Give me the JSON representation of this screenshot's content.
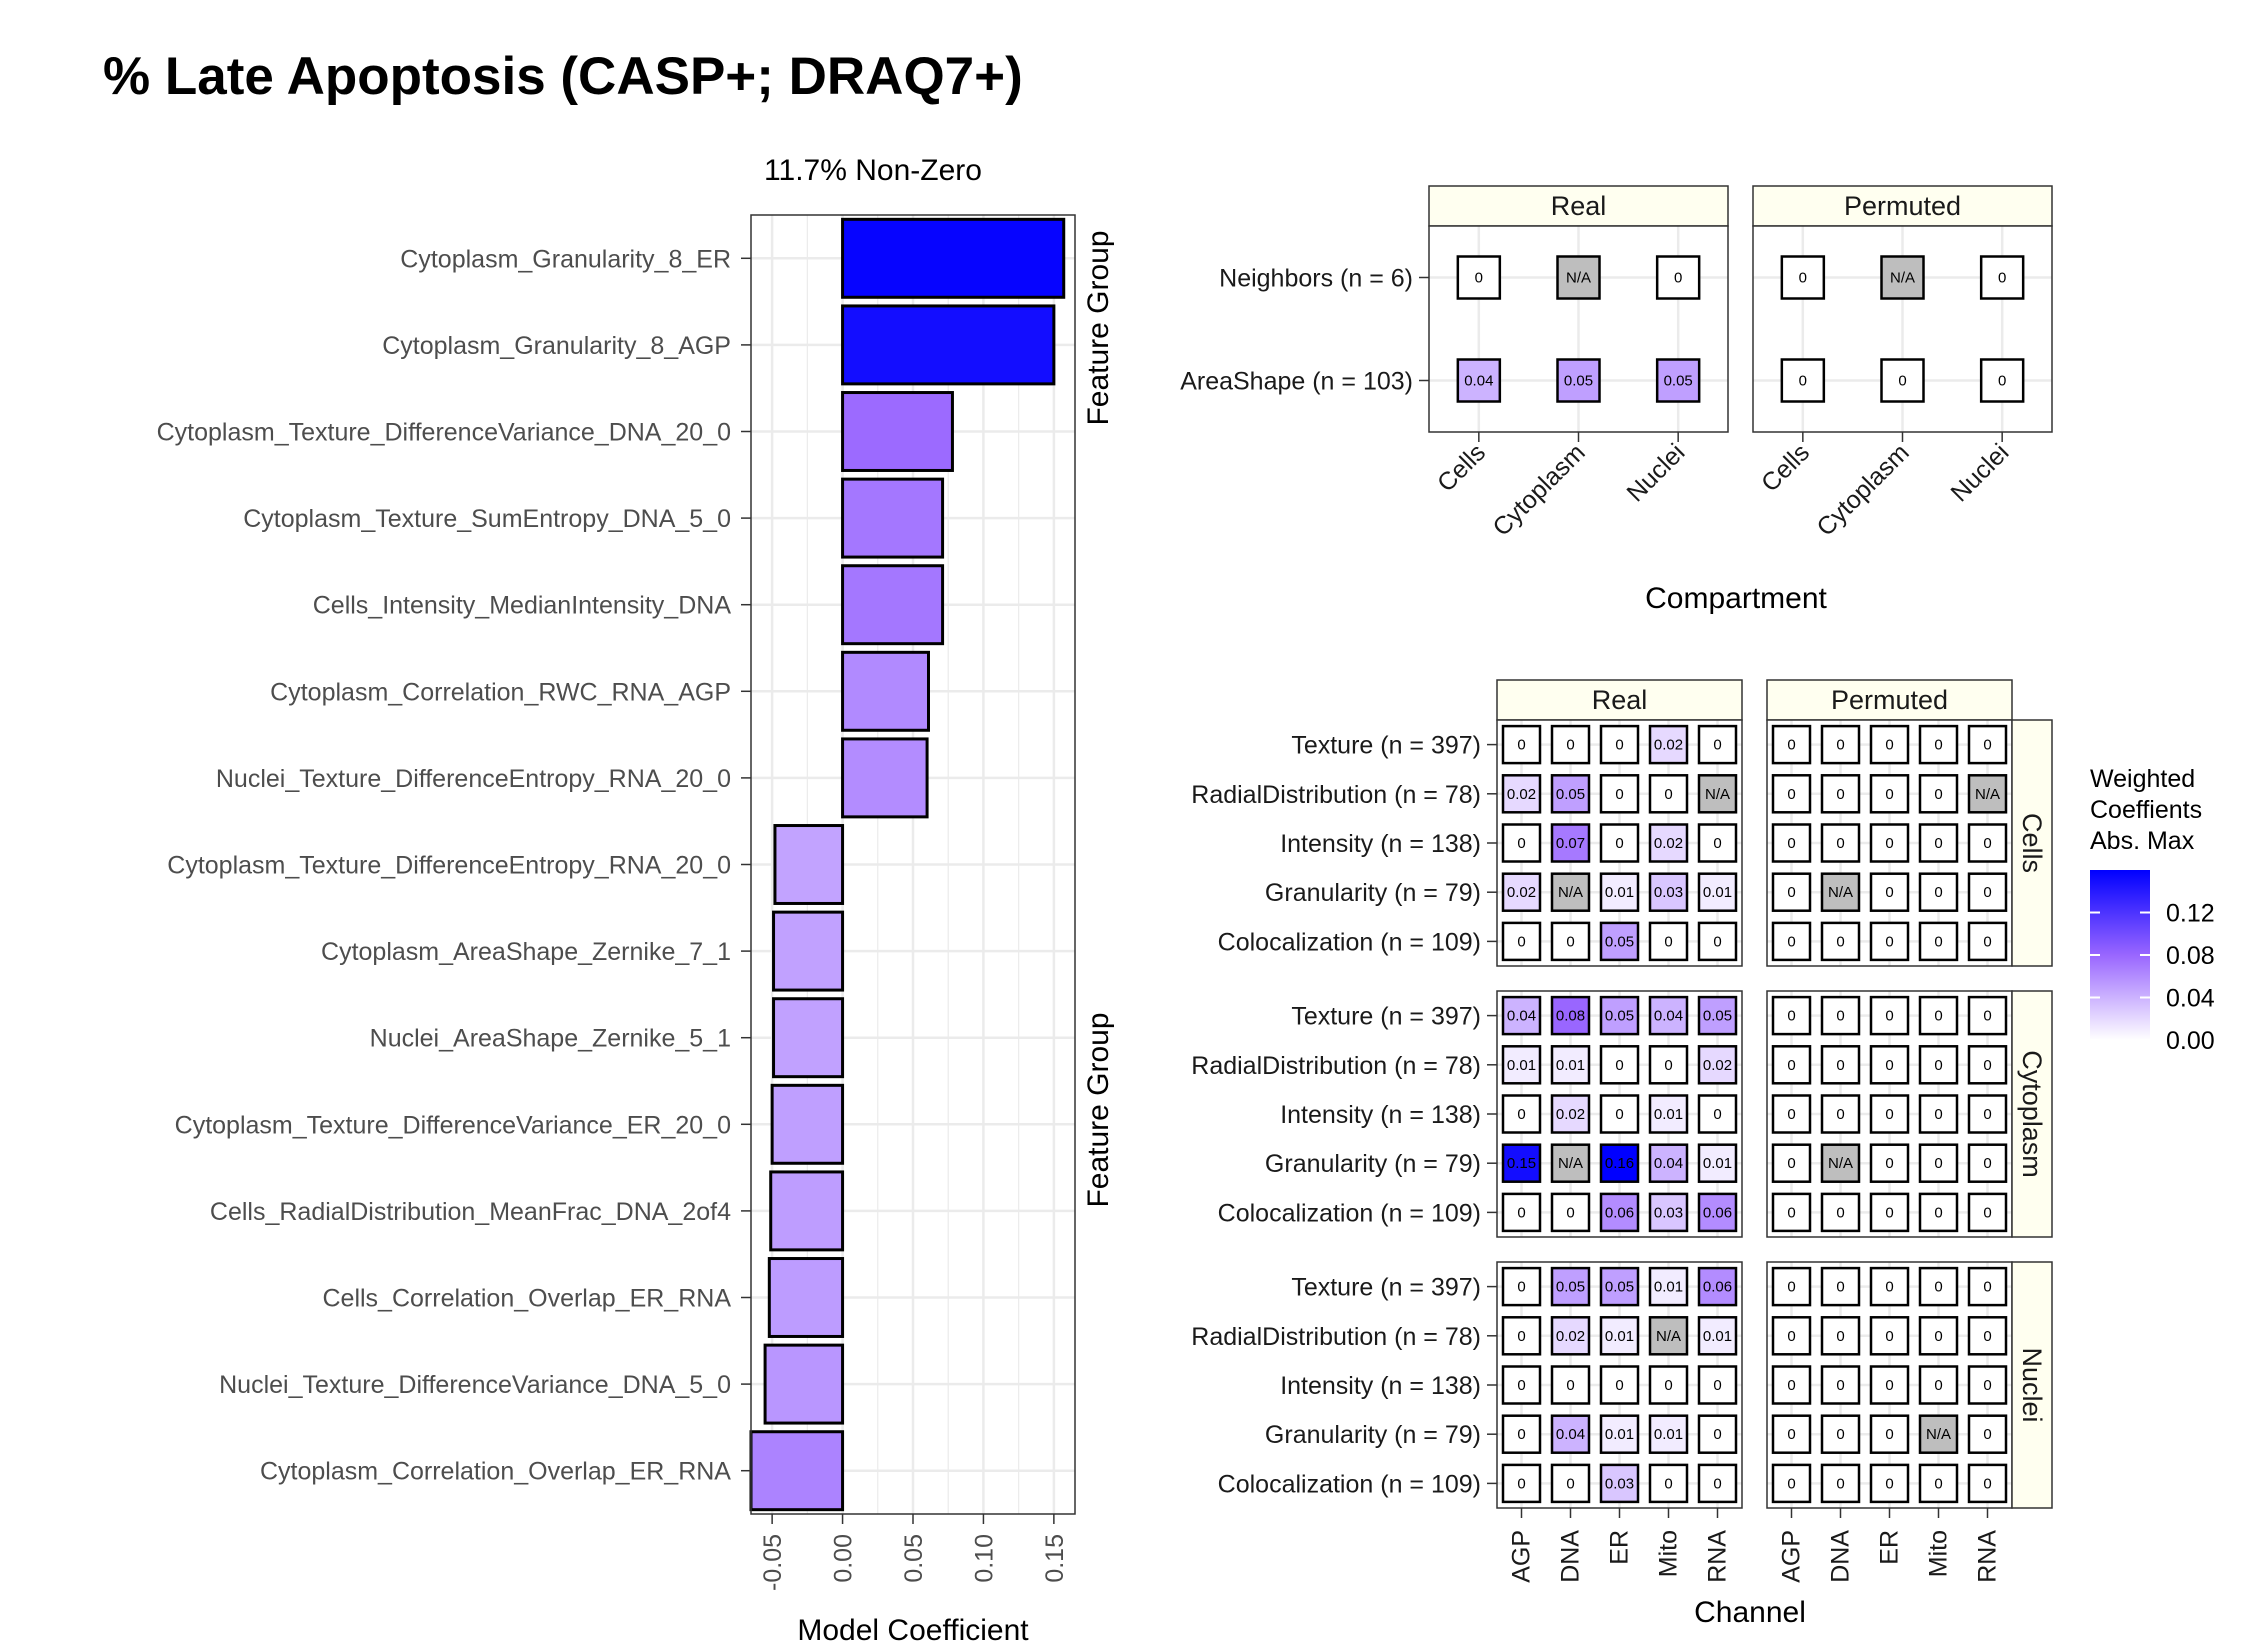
{
  "title": "% Late Apoptosis (CASP+; DRAQ7+)",
  "chart_data": [
    {
      "type": "bar",
      "orientation": "horizontal",
      "subtitle": "11.7% Non-Zero",
      "xlabel": "Model Coefficient",
      "ylabel": "",
      "xlim": [
        -0.065,
        0.165
      ],
      "x_ticks": [
        "-0.05",
        "0.00",
        "0.05",
        "0.10",
        "0.15"
      ],
      "grid": true,
      "categories": [
        "Cytoplasm_Granularity_8_ER",
        "Cytoplasm_Granularity_8_AGP",
        "Cytoplasm_Texture_DifferenceVariance_DNA_20_0",
        "Cytoplasm_Texture_SumEntropy_DNA_5_0",
        "Cells_Intensity_MedianIntensity_DNA",
        "Cytoplasm_Correlation_RWC_RNA_AGP",
        "Nuclei_Texture_DifferenceEntropy_RNA_20_0",
        "Cytoplasm_Texture_DifferenceEntropy_RNA_20_0",
        "Cytoplasm_AreaShape_Zernike_7_1",
        "Nuclei_AreaShape_Zernike_5_1",
        "Cytoplasm_Texture_DifferenceVariance_ER_20_0",
        "Cells_RadialDistribution_MeanFrac_DNA_2of4",
        "Cells_Correlation_Overlap_ER_RNA",
        "Nuclei_Texture_DifferenceVariance_DNA_5_0",
        "Cytoplasm_Correlation_Overlap_ER_RNA"
      ],
      "values": [
        0.157,
        0.15,
        0.078,
        0.071,
        0.071,
        0.061,
        0.06,
        -0.048,
        -0.049,
        -0.049,
        -0.05,
        -0.051,
        -0.052,
        -0.055,
        -0.065
      ]
    },
    {
      "type": "heatmap",
      "ylabel": "Feature Group",
      "xlabel": "Compartment",
      "panels": [
        "Real",
        "Permuted"
      ],
      "columns": [
        "Cells",
        "Cytoplasm",
        "Nuclei"
      ],
      "rows": [
        "Neighbors (n = 6)",
        "AreaShape (n = 103)"
      ],
      "values": {
        "Real": [
          [
            0,
            null,
            0
          ],
          [
            0.04,
            0.05,
            0.05
          ]
        ],
        "Permuted": [
          [
            0,
            null,
            0
          ],
          [
            0,
            0,
            0
          ]
        ]
      },
      "labels": {
        "Real": [
          [
            "0",
            "N/A",
            "0"
          ],
          [
            "0.04",
            "0.05",
            "0.05"
          ]
        ],
        "Permuted": [
          [
            "0",
            "N/A",
            "0"
          ],
          [
            "0",
            "0",
            "0"
          ]
        ]
      }
    },
    {
      "type": "heatmap",
      "ylabel": "Feature Group",
      "xlabel": "Channel",
      "panels": [
        "Real",
        "Permuted"
      ],
      "compartments": [
        "Cells",
        "Cytoplasm",
        "Nuclei"
      ],
      "columns": [
        "AGP",
        "DNA",
        "ER",
        "Mito",
        "RNA"
      ],
      "rows": [
        "Texture (n = 397)",
        "RadialDistribution (n = 78)",
        "Intensity (n = 138)",
        "Granularity (n = 79)",
        "Colocalization (n = 109)"
      ],
      "labels": {
        "Real": {
          "Cells": [
            [
              "0",
              "0",
              "0",
              "0.02",
              "0"
            ],
            [
              "0.02",
              "0.05",
              "0",
              "0",
              "N/A"
            ],
            [
              "0",
              "0.07",
              "0",
              "0.02",
              "0"
            ],
            [
              "0.02",
              "N/A",
              "0.01",
              "0.03",
              "0.01"
            ],
            [
              "0",
              "0",
              "0.05",
              "0",
              "0"
            ]
          ],
          "Cytoplasm": [
            [
              "0.04",
              "0.08",
              "0.05",
              "0.04",
              "0.05"
            ],
            [
              "0.01",
              "0.01",
              "0",
              "0",
              "0.02"
            ],
            [
              "0",
              "0.02",
              "0",
              "0.01",
              "0"
            ],
            [
              "0.15",
              "N/A",
              "0.16",
              "0.04",
              "0.01"
            ],
            [
              "0",
              "0",
              "0.06",
              "0.03",
              "0.06"
            ]
          ],
          "Nuclei": [
            [
              "0",
              "0.05",
              "0.05",
              "0.01",
              "0.06"
            ],
            [
              "0",
              "0.02",
              "0.01",
              "N/A",
              "0.01"
            ],
            [
              "0",
              "0",
              "0",
              "0",
              "0"
            ],
            [
              "0",
              "0.04",
              "0.01",
              "0.01",
              "0"
            ],
            [
              "0",
              "0",
              "0.03",
              "0",
              "0"
            ]
          ]
        },
        "Permuted": {
          "Cells": [
            [
              "0",
              "0",
              "0",
              "0",
              "0"
            ],
            [
              "0",
              "0",
              "0",
              "0",
              "N/A"
            ],
            [
              "0",
              "0",
              "0",
              "0",
              "0"
            ],
            [
              "0",
              "N/A",
              "0",
              "0",
              "0"
            ],
            [
              "0",
              "0",
              "0",
              "0",
              "0"
            ]
          ],
          "Cytoplasm": [
            [
              "0",
              "0",
              "0",
              "0",
              "0"
            ],
            [
              "0",
              "0",
              "0",
              "0",
              "0"
            ],
            [
              "0",
              "0",
              "0",
              "0",
              "0"
            ],
            [
              "0",
              "N/A",
              "0",
              "0",
              "0"
            ],
            [
              "0",
              "0",
              "0",
              "0",
              "0"
            ]
          ],
          "Nuclei": [
            [
              "0",
              "0",
              "0",
              "0",
              "0"
            ],
            [
              "0",
              "0",
              "0",
              "0",
              "0"
            ],
            [
              "0",
              "0",
              "0",
              "0",
              "0"
            ],
            [
              "0",
              "0",
              "0",
              "N/A",
              "0"
            ],
            [
              "0",
              "0",
              "0",
              "0",
              "0"
            ]
          ]
        }
      }
    }
  ],
  "legend": {
    "title_lines": [
      "Weighted",
      "Coeffients",
      "Abs. Max"
    ],
    "ticks": [
      "0.12",
      "0.08",
      "0.04",
      "0.00"
    ],
    "tick_values": [
      0.12,
      0.08,
      0.04,
      0.0
    ],
    "range": [
      0,
      0.16
    ]
  },
  "colors": {
    "low": "#ffffff",
    "mid": "#9966ff",
    "high": "#0000ff",
    "na": "#bebebe",
    "strip": "#fffff0",
    "grid": "#ebebeb"
  }
}
